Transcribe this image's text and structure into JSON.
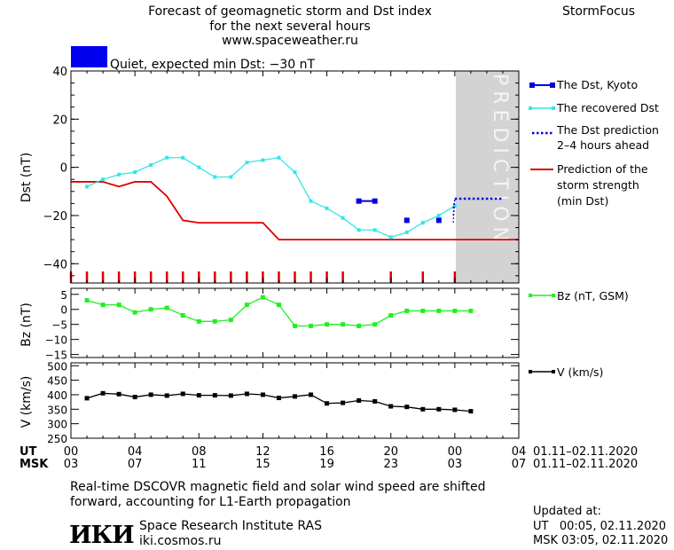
{
  "header": {
    "title_line1": "Forecast of geomagnetic storm and Dst index",
    "title_line2": "for the next several hours",
    "site": "www.spaceweather.ru",
    "brand": "StormFocus",
    "status_text": "Quiet, expected min Dst: −30 nT",
    "status_color": "#0000ee"
  },
  "prediction_label": "PREDICTION",
  "time_axis": {
    "ut_label": "UT",
    "msk_label": "MSK",
    "ut_ticks": [
      "00",
      "04",
      "08",
      "12",
      "16",
      "20",
      "00",
      "04"
    ],
    "msk_ticks": [
      "03",
      "07",
      "11",
      "15",
      "19",
      "23",
      "03",
      "07"
    ],
    "ut_range": "01.11–02.11.2020",
    "msk_range": "01.11–02.11.2020"
  },
  "legend": {
    "dst_kyoto": "The Dst, Kyoto",
    "dst_recovered": "The recovered Dst",
    "dst_pred_line1": "The Dst prediction",
    "dst_pred_line2": "2–4 hours ahead",
    "storm_line1": "Prediction of the",
    "storm_line2": "storm strength",
    "storm_line3": "(min Dst)",
    "bz": "Bz (nT, GSM)",
    "v": "V (km/s)"
  },
  "footer": {
    "note_line1": "Real-time DSCOVR magnetic field and solar wind speed are shifted",
    "note_line2": "forward, accounting for L1-Earth propagation",
    "logo": "ИКИ",
    "institute": "Space Research Institute RAS",
    "url": "iki.cosmos.ru",
    "updated_label": "Updated at:",
    "updated_ut": "UT   00:05, 02.11.2020",
    "updated_msk": "MSK 03:05, 02.11.2020"
  },
  "colors": {
    "kyoto": "#0000dd",
    "recovered": "#33e6e6",
    "prediction": "#0000dd",
    "storm": "#dd0000",
    "bz": "#22ee22",
    "v": "#000000",
    "prediction_zone": "#d3d3d3"
  },
  "chart_data": [
    {
      "type": "line",
      "ylabel": "Dst (nT)",
      "ylim": [
        -48,
        40
      ],
      "yticks": [
        40,
        20,
        0,
        -20,
        -40
      ],
      "xlim_hours": [
        0,
        28
      ],
      "prediction_zone_hours": [
        24,
        28
      ],
      "series": [
        {
          "name": "The recovered Dst",
          "x": [
            1,
            2,
            3,
            4,
            5,
            6,
            7,
            8,
            9,
            10,
            11,
            12,
            13,
            14,
            15,
            16,
            17,
            18,
            19,
            20,
            21,
            22,
            23,
            24
          ],
          "y": [
            -8,
            -5,
            -3,
            -2,
            1,
            4,
            4,
            0,
            -4,
            -4,
            2,
            3,
            4,
            -2,
            -14,
            -17,
            -21,
            -26,
            -26,
            -29,
            -27,
            -23,
            -20,
            -16
          ]
        },
        {
          "name": "The Dst, Kyoto",
          "x": [
            18,
            19,
            21,
            23
          ],
          "y": [
            -14,
            -14,
            -22,
            -22
          ]
        },
        {
          "name": "The Dst prediction 2–4 hours ahead",
          "x": [
            24,
            25,
            26,
            27
          ],
          "y": [
            -13,
            -13,
            -13,
            -13
          ]
        },
        {
          "name": "Prediction of the storm strength (min Dst)",
          "x": [
            0,
            2,
            3,
            4,
            5,
            6,
            7,
            8,
            9,
            10,
            11,
            12,
            13,
            28
          ],
          "y": [
            -6,
            -6,
            -8,
            -6,
            -6,
            -12,
            -22,
            -23,
            -23,
            -23,
            -23,
            -23,
            -30,
            -30
          ]
        }
      ],
      "storm_marker_hours": [
        0,
        1,
        2,
        3,
        4,
        5,
        6,
        7,
        8,
        9,
        10,
        11,
        12,
        13,
        14,
        15,
        16,
        17,
        20,
        22,
        24
      ]
    },
    {
      "type": "line",
      "ylabel": "Bz (nT)",
      "ylim": [
        -16,
        7
      ],
      "yticks": [
        5,
        0,
        -5,
        -10,
        -15
      ],
      "series": [
        {
          "name": "Bz (nT, GSM)",
          "x": [
            1,
            2,
            3,
            4,
            5,
            6,
            7,
            8,
            9,
            10,
            11,
            12,
            13,
            14,
            15,
            16,
            17,
            18,
            19,
            20,
            21,
            22,
            23,
            24,
            25
          ],
          "y": [
            3,
            1.5,
            1.5,
            -1,
            0,
            0.5,
            -2,
            -4,
            -4,
            -3.5,
            1.5,
            4,
            1.5,
            -5.5,
            -5.5,
            -5,
            -5,
            -5.5,
            -5,
            -2,
            -0.5,
            -0.5,
            -0.5,
            -0.5,
            -0.5
          ]
        }
      ]
    },
    {
      "type": "line",
      "ylabel": "V (km/s)",
      "ylim": [
        250,
        510
      ],
      "yticks": [
        500,
        450,
        400,
        350,
        300,
        250
      ],
      "series": [
        {
          "name": "V (km/s)",
          "x": [
            1,
            2,
            3,
            4,
            5,
            6,
            7,
            8,
            9,
            10,
            11,
            12,
            13,
            14,
            15,
            16,
            17,
            18,
            19,
            20,
            21,
            22,
            23,
            24,
            25
          ],
          "y": [
            388,
            405,
            402,
            392,
            400,
            397,
            403,
            398,
            398,
            397,
            403,
            400,
            389,
            394,
            400,
            370,
            372,
            380,
            377,
            360,
            358,
            350,
            350,
            348,
            343
          ]
        }
      ]
    }
  ]
}
